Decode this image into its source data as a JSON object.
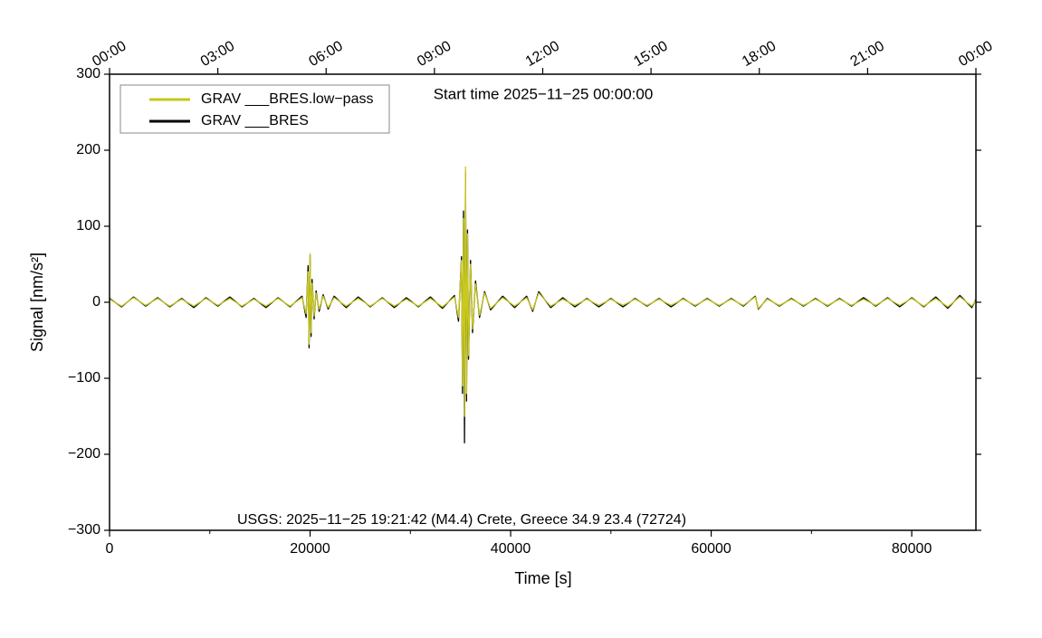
{
  "chart_data": {
    "type": "line",
    "title": "Start time 2025−11−25 00:00:00",
    "annotation": "USGS: 2025−11−25 19:21:42 (M4.4) Crete, Greece 34.9 23.4 (72724)",
    "xlabel": "Time [s]",
    "ylabel": "Signal [nm/s²]",
    "xlim": [
      0,
      86400
    ],
    "ylim": [
      -300,
      300
    ],
    "xticks": [
      0,
      20000,
      40000,
      60000,
      80000
    ],
    "xminorticks": [
      10000,
      30000,
      50000,
      70000
    ],
    "yticks": [
      300,
      200,
      100,
      0,
      {
        "value": -100,
        "label": "−100"
      },
      {
        "value": -200,
        "label": "−200"
      },
      {
        "value": -300,
        "label": "−300"
      }
    ],
    "x2ticks": [
      {
        "value": 0,
        "label": "00:00"
      },
      {
        "value": 10800,
        "label": "03:00"
      },
      {
        "value": 21600,
        "label": "06:00"
      },
      {
        "value": 32400,
        "label": "09:00"
      },
      {
        "value": 43200,
        "label": "12:00"
      },
      {
        "value": 54000,
        "label": "15:00"
      },
      {
        "value": 64800,
        "label": "18:00"
      },
      {
        "value": 75600,
        "label": "21:00"
      },
      {
        "value": 86400,
        "label": "00:00"
      }
    ],
    "legend": "upper left",
    "x": [
      0,
      1200,
      2400,
      3600,
      4800,
      6000,
      7200,
      8400,
      9600,
      10800,
      12000,
      13200,
      14400,
      15600,
      16800,
      18000,
      19200,
      19600,
      19800,
      19900,
      20000,
      20100,
      20200,
      20400,
      20600,
      20900,
      21300,
      21800,
      22400,
      23600,
      24800,
      26000,
      27200,
      28400,
      29600,
      30800,
      32000,
      33200,
      34400,
      34800,
      35100,
      35200,
      35300,
      35400,
      35500,
      35600,
      35700,
      35800,
      36000,
      36200,
      36500,
      36900,
      37400,
      38000,
      39200,
      40400,
      41600,
      42200,
      42800,
      44000,
      45200,
      46400,
      47600,
      48800,
      50000,
      51200,
      52400,
      53600,
      54800,
      56000,
      57200,
      58400,
      59600,
      60800,
      62000,
      63200,
      64400,
      64700,
      65600,
      66800,
      68000,
      69200,
      70400,
      71600,
      72800,
      74000,
      75200,
      76400,
      77600,
      78800,
      80000,
      81200,
      82400,
      83600,
      84800,
      86000,
      86400
    ],
    "series": [
      {
        "name": "GRAV ___BRES.low−pass",
        "color": "#c8c81e",
        "values": [
          4,
          -5,
          6,
          -4,
          5,
          -5,
          4,
          -5,
          5,
          -4,
          5,
          -5,
          4,
          -5,
          5,
          -5,
          6,
          -15,
          40,
          -55,
          64,
          -40,
          25,
          -18,
          12,
          -9,
          8,
          -7,
          6,
          -5,
          5,
          -5,
          5,
          -5,
          4,
          -5,
          5,
          -6,
          7,
          -20,
          55,
          -110,
          110,
          -150,
          178,
          -120,
          90,
          -70,
          50,
          -35,
          24,
          -17,
          12,
          -8,
          6,
          -5,
          6,
          -10,
          12,
          -5,
          4,
          -4,
          4,
          -4,
          4,
          -4,
          4,
          -4,
          4,
          -4,
          4,
          -4,
          4,
          -4,
          4,
          -4,
          7,
          -8,
          4,
          -4,
          4,
          -4,
          4,
          -4,
          4,
          -4,
          4,
          -4,
          5,
          -4,
          5,
          -5,
          5,
          -6,
          7,
          -5,
          3
        ]
      },
      {
        "name": "GRAV ___BRES",
        "color": "#000000",
        "values": [
          5,
          -6,
          7,
          -5,
          6,
          -6,
          5,
          -7,
          6,
          -5,
          7,
          -6,
          5,
          -7,
          6,
          -6,
          8,
          -20,
          48,
          -60,
          62,
          -45,
          30,
          -22,
          15,
          -12,
          10,
          -9,
          8,
          -7,
          7,
          -6,
          6,
          -7,
          6,
          -6,
          7,
          -8,
          9,
          -25,
          60,
          -120,
          120,
          -185,
          170,
          -130,
          95,
          -75,
          55,
          -40,
          28,
          -20,
          14,
          -10,
          8,
          -7,
          8,
          -12,
          14,
          -7,
          6,
          -6,
          5,
          -6,
          5,
          -6,
          5,
          -5,
          5,
          -6,
          5,
          -5,
          5,
          -5,
          5,
          -5,
          8,
          -9,
          5,
          -5,
          5,
          -5,
          5,
          -5,
          5,
          -5,
          6,
          -5,
          6,
          -6,
          6,
          -6,
          7,
          -8,
          9,
          -7,
          4
        ]
      }
    ]
  }
}
